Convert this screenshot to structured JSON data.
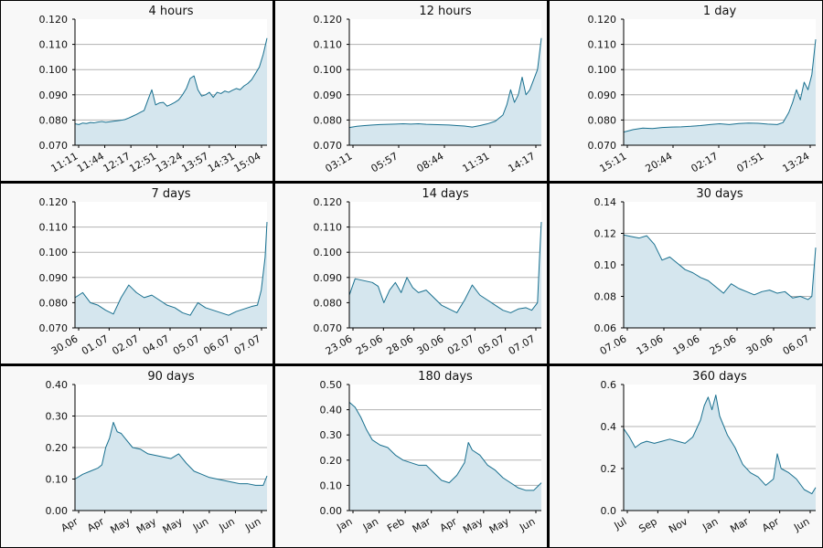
{
  "colors": {
    "line": "#19708f",
    "fill": "#d5e6ee",
    "grid": "#b3b3b3",
    "panel_bg": "#f8f8f8",
    "plot_bg": "#ffffff",
    "border": "#000000"
  },
  "chart_data": [
    {
      "type": "area",
      "title": "4 hours",
      "ylim": [
        0.07,
        0.12
      ],
      "yticks": [
        "0.070",
        "0.080",
        "0.090",
        "0.100",
        "0.110",
        "0.120"
      ],
      "ytick_values": [
        0.07,
        0.08,
        0.09,
        0.1,
        0.11,
        0.12
      ],
      "xticks": [
        "11:11",
        "11:44",
        "12:17",
        "12:51",
        "13:24",
        "13:57",
        "14:31",
        "15:04"
      ],
      "xtick_rotated": true,
      "x": [
        0,
        2,
        4,
        6,
        8,
        10,
        12,
        14,
        16,
        18,
        20,
        22,
        24,
        26,
        28,
        30,
        32,
        34,
        36,
        38,
        40,
        42,
        44,
        46,
        48,
        50,
        52,
        54,
        56,
        58,
        60,
        62,
        64,
        66,
        68,
        70,
        72,
        74,
        76,
        78,
        80,
        82,
        84,
        86,
        88,
        90,
        92,
        94,
        96,
        98,
        100
      ],
      "y": [
        0.0785,
        0.0782,
        0.0788,
        0.0786,
        0.079,
        0.0789,
        0.0792,
        0.0794,
        0.0791,
        0.0793,
        0.0795,
        0.0797,
        0.0799,
        0.0802,
        0.0808,
        0.0815,
        0.0822,
        0.083,
        0.0838,
        0.088,
        0.092,
        0.086,
        0.0868,
        0.087,
        0.0855,
        0.0862,
        0.087,
        0.088,
        0.09,
        0.0925,
        0.0965,
        0.0975,
        0.092,
        0.0895,
        0.09,
        0.091,
        0.089,
        0.091,
        0.0905,
        0.0915,
        0.091,
        0.0918,
        0.0925,
        0.092,
        0.0935,
        0.0945,
        0.096,
        0.0985,
        0.101,
        0.106,
        0.1125
      ]
    },
    {
      "type": "area",
      "title": "12 hours",
      "ylim": [
        0.07,
        0.12
      ],
      "yticks": [
        "0.070",
        "0.080",
        "0.090",
        "0.100",
        "0.110",
        "0.120"
      ],
      "ytick_values": [
        0.07,
        0.08,
        0.09,
        0.1,
        0.11,
        0.12
      ],
      "xticks": [
        "03:11",
        "05:57",
        "08:44",
        "11:31",
        "14:17"
      ],
      "xtick_rotated": true,
      "x": [
        0,
        4,
        8,
        12,
        16,
        20,
        24,
        28,
        32,
        36,
        40,
        44,
        48,
        52,
        56,
        60,
        64,
        68,
        72,
        76,
        80,
        82,
        84,
        86,
        88,
        90,
        92,
        94,
        96,
        98,
        100
      ],
      "y": [
        0.077,
        0.0775,
        0.0778,
        0.078,
        0.0782,
        0.0783,
        0.0784,
        0.0785,
        0.0784,
        0.0785,
        0.0783,
        0.0782,
        0.0781,
        0.078,
        0.0778,
        0.0776,
        0.0772,
        0.0778,
        0.0785,
        0.0795,
        0.082,
        0.086,
        0.092,
        0.087,
        0.09,
        0.097,
        0.09,
        0.092,
        0.096,
        0.1,
        0.1125
      ]
    },
    {
      "type": "area",
      "title": "1 day",
      "ylim": [
        0.07,
        0.12
      ],
      "yticks": [
        "0.070",
        "0.080",
        "0.090",
        "0.100",
        "0.110",
        "0.120"
      ],
      "ytick_values": [
        0.07,
        0.08,
        0.09,
        0.1,
        0.11,
        0.12
      ],
      "xticks": [
        "15:11",
        "20:44",
        "02:17",
        "07:51",
        "13:24"
      ],
      "xtick_rotated": true,
      "x": [
        0,
        5,
        10,
        15,
        20,
        25,
        30,
        35,
        40,
        45,
        50,
        55,
        60,
        65,
        70,
        75,
        80,
        83,
        86,
        88,
        90,
        92,
        94,
        96,
        98,
        100
      ],
      "y": [
        0.0752,
        0.0762,
        0.0768,
        0.0766,
        0.077,
        0.0772,
        0.0773,
        0.0775,
        0.0778,
        0.0782,
        0.0785,
        0.0782,
        0.0786,
        0.0788,
        0.0787,
        0.0784,
        0.0782,
        0.079,
        0.083,
        0.087,
        0.092,
        0.088,
        0.095,
        0.092,
        0.098,
        0.112
      ]
    },
    {
      "type": "area",
      "title": "7 days",
      "ylim": [
        0.07,
        0.12
      ],
      "yticks": [
        "0.070",
        "0.080",
        "0.090",
        "0.100",
        "0.110",
        "0.120"
      ],
      "ytick_values": [
        0.07,
        0.08,
        0.09,
        0.1,
        0.11,
        0.12
      ],
      "xticks": [
        "30.06",
        "01.07",
        "02.07",
        "04.07",
        "05.07",
        "06.07",
        "07.07"
      ],
      "xtick_rotated": true,
      "x": [
        0,
        4,
        8,
        12,
        16,
        20,
        24,
        28,
        32,
        36,
        40,
        44,
        48,
        52,
        56,
        60,
        64,
        68,
        72,
        76,
        80,
        84,
        88,
        92,
        95,
        97,
        99,
        100
      ],
      "y": [
        0.082,
        0.084,
        0.08,
        0.079,
        0.077,
        0.0755,
        0.082,
        0.087,
        0.084,
        0.082,
        0.083,
        0.081,
        0.079,
        0.078,
        0.076,
        0.075,
        0.08,
        0.078,
        0.077,
        0.076,
        0.075,
        0.0765,
        0.0775,
        0.0785,
        0.079,
        0.085,
        0.098,
        0.112
      ]
    },
    {
      "type": "area",
      "title": "14 days",
      "ylim": [
        0.07,
        0.12
      ],
      "yticks": [
        "0.070",
        "0.080",
        "0.090",
        "0.100",
        "0.110",
        "0.120"
      ],
      "ytick_values": [
        0.07,
        0.08,
        0.09,
        0.1,
        0.11,
        0.12
      ],
      "xticks": [
        "23.06",
        "25.06",
        "28.06",
        "30.06",
        "02.07",
        "05.07",
        "07.07"
      ],
      "xtick_rotated": true,
      "x": [
        0,
        3,
        6,
        9,
        12,
        15,
        18,
        21,
        24,
        27,
        30,
        33,
        36,
        40,
        44,
        48,
        52,
        56,
        60,
        64,
        68,
        72,
        76,
        80,
        84,
        88,
        92,
        95,
        98,
        99,
        100
      ],
      "y": [
        0.083,
        0.0895,
        0.089,
        0.0885,
        0.088,
        0.0865,
        0.08,
        0.085,
        0.088,
        0.084,
        0.09,
        0.086,
        0.084,
        0.085,
        0.082,
        0.079,
        0.0775,
        0.076,
        0.081,
        0.087,
        0.083,
        0.081,
        0.079,
        0.077,
        0.076,
        0.0775,
        0.078,
        0.077,
        0.08,
        0.097,
        0.112
      ]
    },
    {
      "type": "area",
      "title": "30 days",
      "ylim": [
        0.06,
        0.14
      ],
      "yticks": [
        "0.06",
        "0.08",
        "0.10",
        "0.12",
        "0.14"
      ],
      "ytick_values": [
        0.06,
        0.08,
        0.1,
        0.12,
        0.14
      ],
      "xticks": [
        "07.06",
        "13.06",
        "19.06",
        "25.06",
        "30.06",
        "06.07"
      ],
      "xtick_rotated": true,
      "x": [
        0,
        4,
        8,
        12,
        16,
        20,
        24,
        28,
        32,
        36,
        40,
        44,
        48,
        52,
        56,
        60,
        64,
        68,
        72,
        76,
        80,
        84,
        88,
        92,
        96,
        98,
        100
      ],
      "y": [
        0.119,
        0.118,
        0.117,
        0.1185,
        0.113,
        0.103,
        0.105,
        0.101,
        0.097,
        0.095,
        0.092,
        0.09,
        0.086,
        0.082,
        0.088,
        0.085,
        0.083,
        0.081,
        0.083,
        0.084,
        0.082,
        0.083,
        0.079,
        0.08,
        0.078,
        0.08,
        0.111
      ]
    },
    {
      "type": "area",
      "title": "90 days",
      "ylim": [
        0.0,
        0.4
      ],
      "yticks": [
        "0.00",
        "0.10",
        "0.20",
        "0.30",
        "0.40"
      ],
      "ytick_values": [
        0.0,
        0.1,
        0.2,
        0.3,
        0.4
      ],
      "xticks": [
        "Apr",
        "Apr",
        "May",
        "May",
        "May",
        "Jun",
        "Jun",
        "Jun"
      ],
      "xtick_rotated": true,
      "x": [
        0,
        4,
        8,
        12,
        14,
        16,
        18,
        20,
        22,
        24,
        26,
        30,
        34,
        38,
        42,
        46,
        50,
        54,
        58,
        62,
        66,
        70,
        74,
        78,
        82,
        86,
        90,
        94,
        98,
        100
      ],
      "y": [
        0.1,
        0.115,
        0.125,
        0.135,
        0.145,
        0.2,
        0.23,
        0.28,
        0.25,
        0.245,
        0.23,
        0.2,
        0.195,
        0.18,
        0.175,
        0.17,
        0.165,
        0.18,
        0.15,
        0.125,
        0.115,
        0.105,
        0.1,
        0.095,
        0.09,
        0.085,
        0.085,
        0.08,
        0.08,
        0.11
      ]
    },
    {
      "type": "area",
      "title": "180 days",
      "ylim": [
        0.0,
        0.5
      ],
      "yticks": [
        "0.00",
        "0.10",
        "0.20",
        "0.30",
        "0.40",
        "0.50"
      ],
      "ytick_values": [
        0.0,
        0.1,
        0.2,
        0.3,
        0.4,
        0.5
      ],
      "xticks": [
        "Jan",
        "Jan",
        "Feb",
        "Mar",
        "Apr",
        "May",
        "May",
        "Jun"
      ],
      "xtick_rotated": true,
      "x": [
        0,
        3,
        6,
        9,
        12,
        16,
        20,
        24,
        28,
        32,
        36,
        40,
        44,
        48,
        52,
        56,
        60,
        62,
        64,
        68,
        72,
        76,
        80,
        84,
        88,
        92,
        96,
        100
      ],
      "y": [
        0.43,
        0.41,
        0.37,
        0.32,
        0.28,
        0.26,
        0.25,
        0.22,
        0.2,
        0.19,
        0.18,
        0.18,
        0.15,
        0.12,
        0.11,
        0.14,
        0.19,
        0.27,
        0.24,
        0.22,
        0.18,
        0.16,
        0.13,
        0.11,
        0.09,
        0.08,
        0.08,
        0.11
      ]
    },
    {
      "type": "area",
      "title": "360 days",
      "ylim": [
        0.0,
        0.6
      ],
      "yticks": [
        "0.0",
        "0.2",
        "0.4",
        "0.6"
      ],
      "ytick_values": [
        0.0,
        0.2,
        0.4,
        0.6
      ],
      "xticks": [
        "Jul",
        "Sep",
        "Nov",
        "Jan",
        "Mar",
        "Apr",
        "Jun"
      ],
      "xtick_rotated": true,
      "x": [
        0,
        3,
        6,
        9,
        12,
        16,
        20,
        24,
        28,
        32,
        36,
        40,
        42,
        44,
        46,
        48,
        50,
        54,
        58,
        62,
        66,
        70,
        74,
        78,
        80,
        82,
        86,
        90,
        94,
        98,
        100
      ],
      "y": [
        0.39,
        0.35,
        0.3,
        0.32,
        0.33,
        0.32,
        0.33,
        0.34,
        0.33,
        0.32,
        0.35,
        0.43,
        0.5,
        0.54,
        0.48,
        0.55,
        0.45,
        0.36,
        0.3,
        0.22,
        0.18,
        0.16,
        0.12,
        0.15,
        0.27,
        0.2,
        0.18,
        0.15,
        0.1,
        0.08,
        0.11
      ]
    }
  ]
}
